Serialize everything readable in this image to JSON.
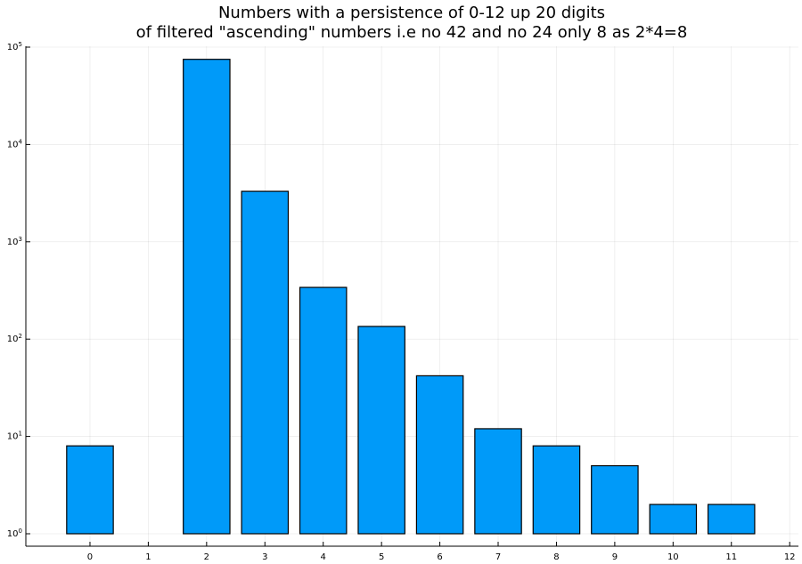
{
  "chart_data": {
    "type": "bar",
    "title_lines": [
      "Numbers with a persistence of 0-12 up 20 digits",
      "of filtered \"ascending\" numbers i.e no 42 and no 24 only 8 as 2*4=8"
    ],
    "xlabel": "",
    "ylabel": "",
    "y_scale": "log10",
    "ylim": [
      1,
      100000
    ],
    "xlim": [
      -1.1,
      12.15
    ],
    "grid": true,
    "legend": "none",
    "bar_color": "#009af9",
    "bar_edge_color": "#000000",
    "x": [
      0,
      2,
      3,
      4,
      5,
      6,
      7,
      8,
      9,
      10,
      11
    ],
    "values": [
      8,
      75000,
      3300,
      340,
      135,
      42,
      12,
      8,
      5,
      2,
      2
    ],
    "x_ticks": [
      "0",
      "1",
      "2",
      "3",
      "4",
      "5",
      "6",
      "7",
      "8",
      "9",
      "10",
      "11",
      "12"
    ],
    "y_ticks": [
      {
        "base": "10",
        "exp": "0"
      },
      {
        "base": "10",
        "exp": "1"
      },
      {
        "base": "10",
        "exp": "2"
      },
      {
        "base": "10",
        "exp": "3"
      },
      {
        "base": "10",
        "exp": "4"
      },
      {
        "base": "10",
        "exp": "5"
      }
    ]
  }
}
